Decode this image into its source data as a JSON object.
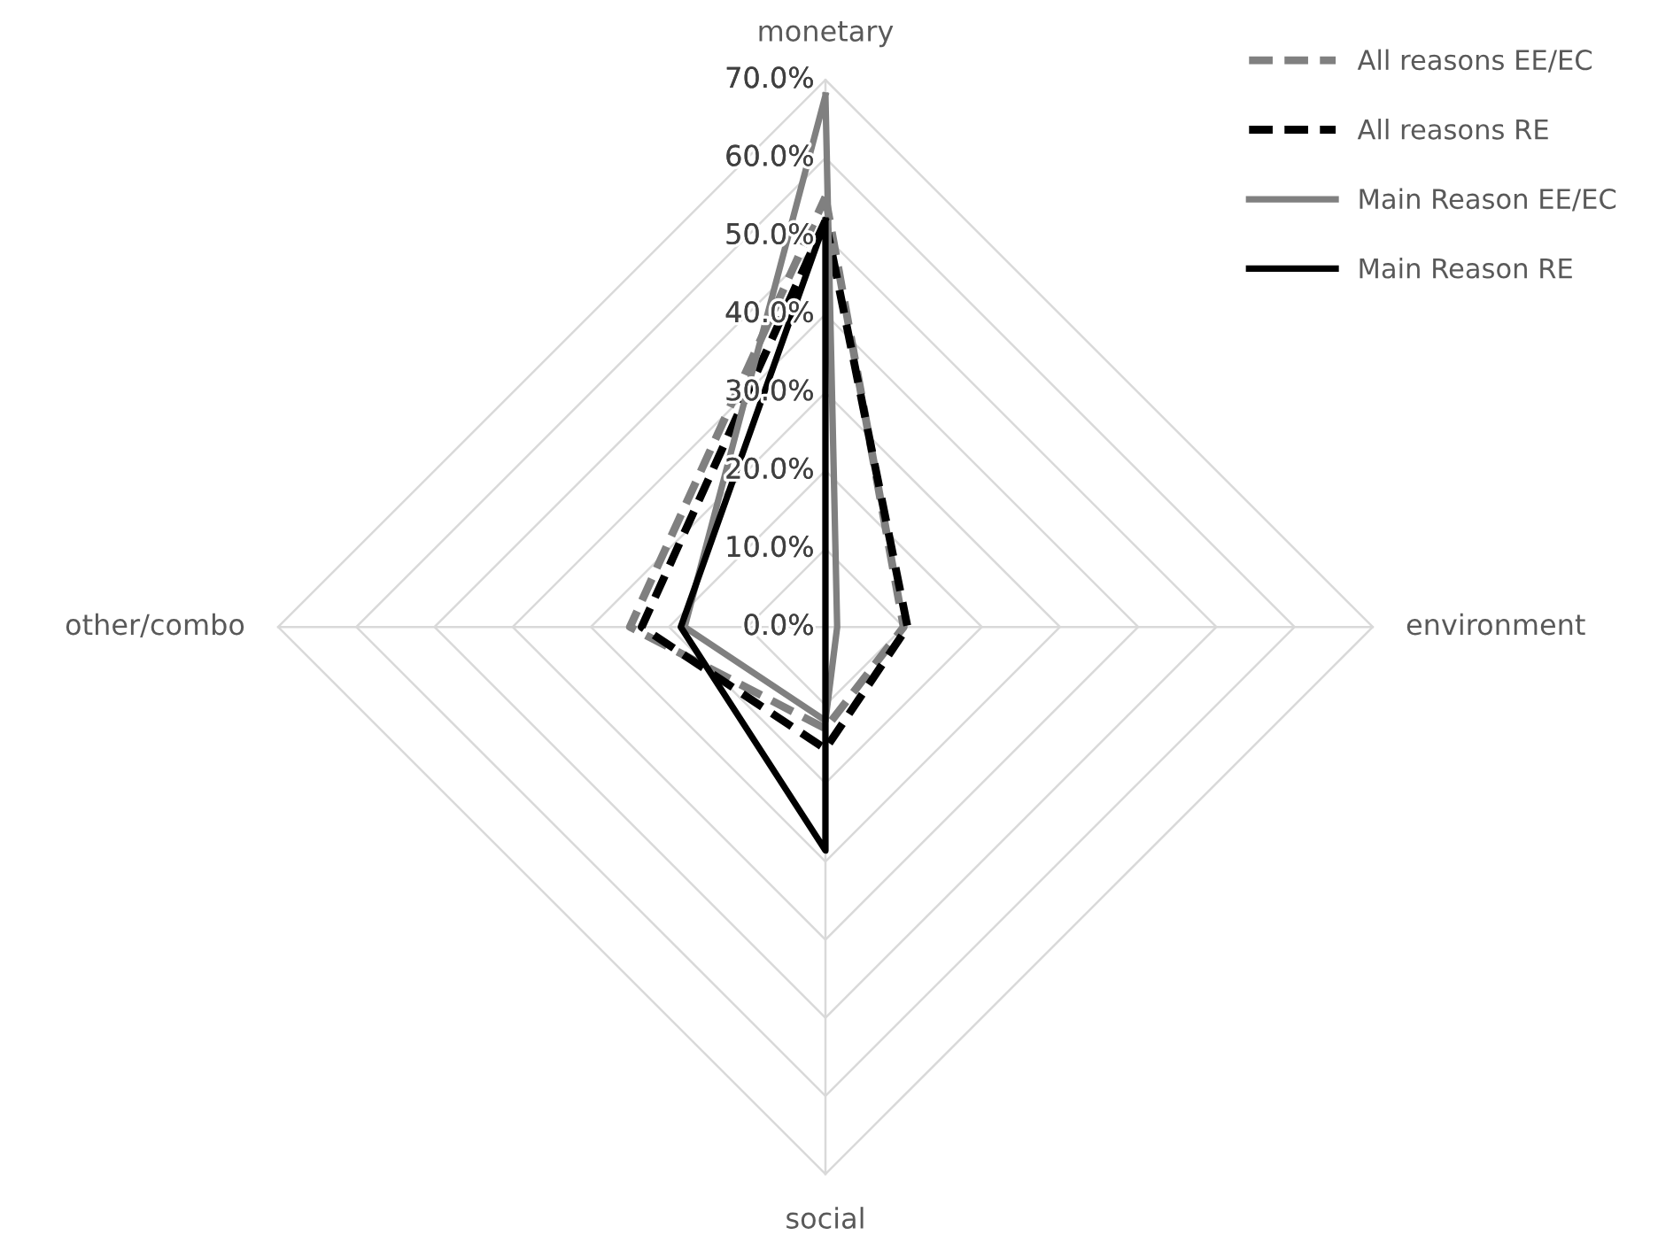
{
  "chart_data": {
    "type": "radar",
    "categories": [
      "monetary",
      "environment",
      "social",
      "other/combo"
    ],
    "ylim": [
      0,
      70
    ],
    "yticks": [
      {
        "value": 0,
        "label": "0.0%"
      },
      {
        "value": 10,
        "label": "10.0%"
      },
      {
        "value": 20,
        "label": "20.0%"
      },
      {
        "value": 30,
        "label": "30.0%"
      },
      {
        "value": 40,
        "label": "40.0%"
      },
      {
        "value": 50,
        "label": "50.0%"
      },
      {
        "value": 60,
        "label": "60.0%"
      },
      {
        "value": 70,
        "label": "70.0%"
      }
    ],
    "grid": true,
    "legend": "top right",
    "marker": "none",
    "series": [
      {
        "name": "All reasons EE/EC",
        "color": "#808080",
        "line_style": "dashed",
        "values": [
          55,
          10,
          13,
          25
        ]
      },
      {
        "name": "All reasons RE",
        "color": "#000000",
        "line_style": "dashed",
        "values": [
          52,
          10.5,
          15.6,
          23.5
        ]
      },
      {
        "name": "Main Reason EE/EC",
        "color": "#808080",
        "line_style": "solid",
        "values": [
          68,
          1.5,
          12,
          18
        ]
      },
      {
        "name": "Main Reason RE",
        "color": "#000000",
        "line_style": "solid",
        "values": [
          52,
          0,
          28.6,
          18.5
        ]
      }
    ]
  }
}
